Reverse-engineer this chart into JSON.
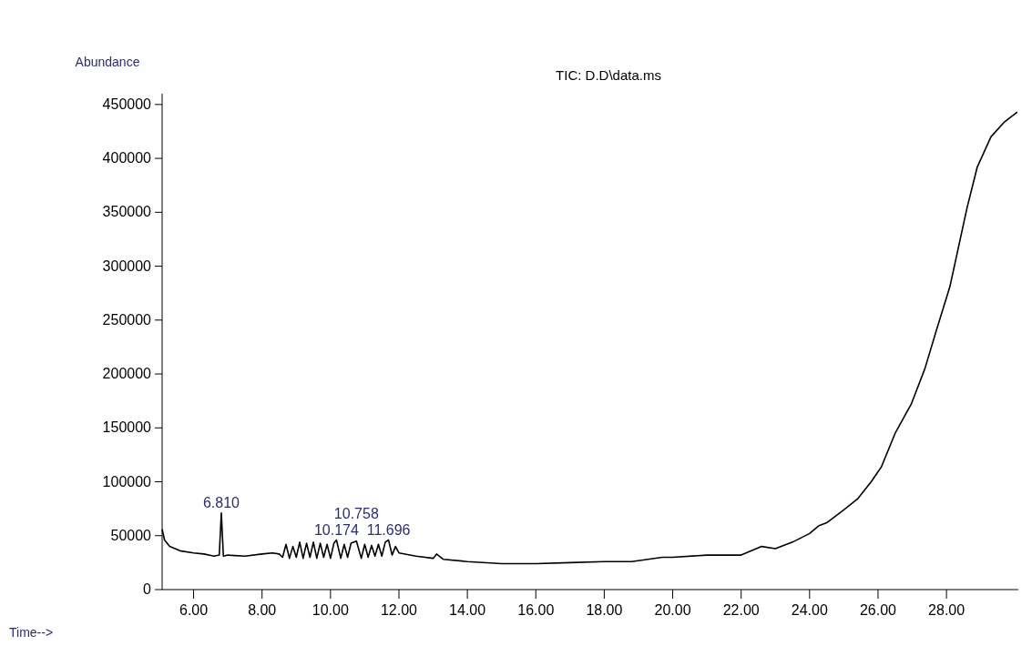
{
  "chart_data": {
    "type": "line",
    "title": "TIC: D.D\\data.ms",
    "xlabel": "Time-->",
    "ylabel": "Abundance",
    "x": [
      5.08,
      5.15,
      5.3,
      5.6,
      6.0,
      6.3,
      6.6,
      6.75,
      6.81,
      6.87,
      7.0,
      7.5,
      8.0,
      8.3,
      8.5,
      8.6,
      8.7,
      8.8,
      8.9,
      9.0,
      9.1,
      9.2,
      9.3,
      9.4,
      9.5,
      9.6,
      9.7,
      9.8,
      9.9,
      10.0,
      10.1,
      10.174,
      10.3,
      10.4,
      10.5,
      10.6,
      10.758,
      10.9,
      11.0,
      11.1,
      11.2,
      11.3,
      11.4,
      11.5,
      11.6,
      11.696,
      11.8,
      11.9,
      12.0,
      12.5,
      13.0,
      13.1,
      13.3,
      14.0,
      15.0,
      16.0,
      17.0,
      18.0,
      18.8,
      19.7,
      20.0,
      21.0,
      22.0,
      22.6,
      23.0,
      23.5,
      24.0,
      24.26,
      24.5,
      25.0,
      25.4,
      25.8,
      26.1,
      26.5,
      26.97,
      27.37,
      27.7,
      28.1,
      28.6,
      28.9,
      29.3,
      29.7,
      30.07
    ],
    "series": [
      {
        "color": "#000000",
        "values": [
          56000,
          46000,
          40000,
          36000,
          34000,
          33000,
          31000,
          32000,
          71000,
          31000,
          32000,
          31000,
          33000,
          34000,
          33000,
          30000,
          42000,
          29000,
          40000,
          30000,
          44000,
          29000,
          43000,
          30000,
          44000,
          29000,
          43000,
          30000,
          42000,
          29000,
          43000,
          46000,
          29000,
          42000,
          30000,
          43000,
          45000,
          29000,
          42000,
          30000,
          41000,
          31000,
          42000,
          31000,
          44000,
          46000,
          32000,
          40000,
          34000,
          31000,
          29000,
          33000,
          28000,
          26000,
          24000,
          24000,
          25000,
          26000,
          26000,
          30000,
          30000,
          32000,
          32000,
          40000,
          38000,
          44000,
          52000,
          59000,
          62000,
          74000,
          84000,
          100000,
          114000,
          145000,
          172000,
          205000,
          240000,
          281000,
          354000,
          392000,
          420000,
          434000,
          443000
        ]
      }
    ],
    "xlim": [
      5.08,
      30.1
    ],
    "ylim": [
      0,
      460000
    ],
    "xticks": [
      {
        "value": 6,
        "label": "6.00"
      },
      {
        "value": 8,
        "label": "8.00"
      },
      {
        "value": 10,
        "label": "10.00"
      },
      {
        "value": 12,
        "label": "12.00"
      },
      {
        "value": 14,
        "label": "14.00"
      },
      {
        "value": 16,
        "label": "16.00"
      },
      {
        "value": 18,
        "label": "18.00"
      },
      {
        "value": 20,
        "label": "20.00"
      },
      {
        "value": 22,
        "label": "22.00"
      },
      {
        "value": 24,
        "label": "24.00"
      },
      {
        "value": 26,
        "label": "26.00"
      },
      {
        "value": 28,
        "label": "28.00"
      }
    ],
    "yticks": [
      0,
      50000,
      100000,
      150000,
      200000,
      250000,
      300000,
      350000,
      400000,
      450000
    ],
    "annotations": [
      {
        "text": "6.810",
        "x": 6.81,
        "y": 71000
      },
      {
        "text": "10.174",
        "x": 10.174,
        "y": 46000
      },
      {
        "text": "10.758",
        "x": 10.758,
        "y": 45000
      },
      {
        "text": "11.696",
        "x": 11.696,
        "y": 46000
      }
    ],
    "grid": false
  }
}
